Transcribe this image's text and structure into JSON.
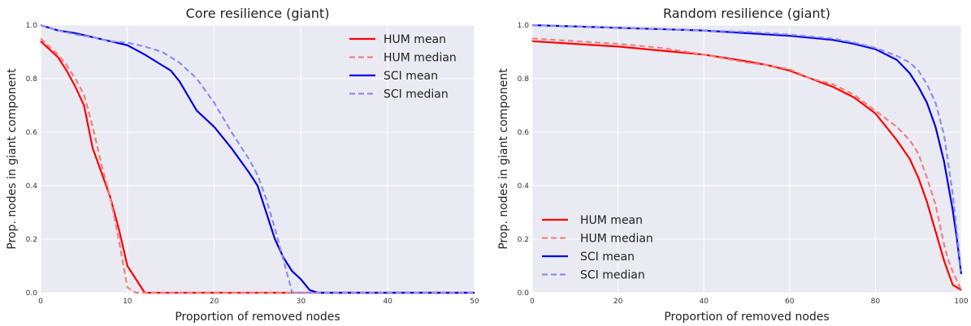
{
  "chart_data": [
    {
      "type": "line",
      "title": "Core resilience (giant)",
      "xlabel": "Proportion of removed nodes",
      "ylabel": "Prop. nodes in giant component",
      "xlim": [
        0,
        50
      ],
      "ylim": [
        0,
        1
      ],
      "xticks": [
        "0",
        "10",
        "20",
        "30",
        "40",
        "50"
      ],
      "yticks": [
        "0.0",
        "0.2",
        "0.4",
        "0.6",
        "0.8",
        "1.0"
      ],
      "grid": true,
      "legend_position": "top-right",
      "series": [
        {
          "name": "HUM mean",
          "color": "#ff0000",
          "style": "solid",
          "x": [
            0,
            1,
            2,
            3,
            4,
            5,
            6,
            7,
            8,
            9,
            10,
            11,
            12,
            13,
            15,
            20,
            30,
            50
          ],
          "y": [
            0.94,
            0.91,
            0.88,
            0.83,
            0.77,
            0.7,
            0.54,
            0.45,
            0.36,
            0.24,
            0.1,
            0.05,
            0.0,
            0.0,
            0.0,
            0.0,
            0.0,
            0.0
          ]
        },
        {
          "name": "HUM median",
          "color": "#f08080",
          "style": "dashed",
          "x": [
            0,
            1,
            2,
            3,
            4,
            5,
            6,
            7,
            8,
            9,
            10,
            11,
            12,
            20,
            30,
            50
          ],
          "y": [
            0.95,
            0.92,
            0.89,
            0.85,
            0.8,
            0.74,
            0.62,
            0.48,
            0.36,
            0.2,
            0.02,
            0.0,
            0.0,
            0.0,
            0.0,
            0.0
          ]
        },
        {
          "name": "SCI mean",
          "color": "#0000ee",
          "style": "solid",
          "x": [
            0,
            2,
            4,
            6,
            8,
            10,
            12,
            14,
            15,
            16,
            18,
            20,
            22,
            24,
            25,
            26,
            27,
            28,
            29,
            30,
            31,
            32,
            35,
            40,
            50
          ],
          "y": [
            1.0,
            0.98,
            0.97,
            0.955,
            0.94,
            0.925,
            0.89,
            0.85,
            0.83,
            0.79,
            0.68,
            0.62,
            0.54,
            0.45,
            0.4,
            0.3,
            0.2,
            0.13,
            0.08,
            0.05,
            0.01,
            0.0,
            0.0,
            0.0,
            0.0
          ]
        },
        {
          "name": "SCI median",
          "color": "#8c8cf2",
          "style": "dashed",
          "x": [
            0,
            2,
            4,
            6,
            8,
            10,
            12,
            14,
            15,
            16,
            18,
            20,
            22,
            24,
            25,
            26,
            27,
            28,
            29,
            30,
            40,
            50
          ],
          "y": [
            1.0,
            0.98,
            0.965,
            0.955,
            0.94,
            0.935,
            0.92,
            0.9,
            0.88,
            0.86,
            0.8,
            0.71,
            0.6,
            0.5,
            0.44,
            0.35,
            0.24,
            0.12,
            0.0,
            0.0,
            0.0,
            0.0
          ]
        }
      ]
    },
    {
      "type": "line",
      "title": "Random resilience (giant)",
      "xlabel": "Proportion of removed nodes",
      "ylabel": "Prop. nodes in giant component",
      "xlim": [
        0,
        100
      ],
      "ylim": [
        0,
        1
      ],
      "xticks": [
        "0",
        "20",
        "40",
        "60",
        "80",
        "100"
      ],
      "yticks": [
        "0.0",
        "0.2",
        "0.4",
        "0.6",
        "0.8",
        "1.0"
      ],
      "grid": true,
      "legend_position": "bottom-left",
      "series": [
        {
          "name": "HUM mean",
          "color": "#ff0000",
          "style": "solid",
          "x": [
            0,
            10,
            20,
            30,
            40,
            50,
            55,
            60,
            65,
            70,
            75,
            80,
            82,
            85,
            88,
            90,
            92,
            94,
            96,
            98,
            99,
            100
          ],
          "y": [
            0.94,
            0.93,
            0.92,
            0.905,
            0.89,
            0.865,
            0.85,
            0.83,
            0.8,
            0.77,
            0.73,
            0.67,
            0.63,
            0.57,
            0.5,
            0.43,
            0.34,
            0.23,
            0.12,
            0.03,
            0.02,
            0.01
          ]
        },
        {
          "name": "HUM median",
          "color": "#f08080",
          "style": "dashed",
          "x": [
            0,
            10,
            20,
            30,
            40,
            50,
            55,
            60,
            65,
            70,
            75,
            80,
            85,
            88,
            90,
            92,
            94,
            96,
            97,
            98,
            100
          ],
          "y": [
            0.95,
            0.94,
            0.93,
            0.915,
            0.89,
            0.86,
            0.85,
            0.835,
            0.8,
            0.78,
            0.74,
            0.68,
            0.62,
            0.57,
            0.52,
            0.43,
            0.33,
            0.18,
            0.12,
            0.08,
            0.01
          ]
        },
        {
          "name": "SCI mean",
          "color": "#0000ee",
          "style": "solid",
          "x": [
            0,
            10,
            20,
            30,
            40,
            50,
            60,
            70,
            75,
            80,
            85,
            88,
            90,
            92,
            94,
            96,
            98,
            99,
            100
          ],
          "y": [
            1.0,
            0.995,
            0.99,
            0.985,
            0.98,
            0.97,
            0.96,
            0.945,
            0.93,
            0.91,
            0.87,
            0.82,
            0.77,
            0.71,
            0.62,
            0.49,
            0.31,
            0.2,
            0.07
          ]
        },
        {
          "name": "SCI median",
          "color": "#8c8cf2",
          "style": "dashed",
          "x": [
            0,
            10,
            20,
            30,
            40,
            50,
            60,
            70,
            75,
            80,
            85,
            88,
            90,
            92,
            94,
            96,
            98,
            100
          ],
          "y": [
            1.0,
            0.995,
            0.99,
            0.985,
            0.98,
            0.975,
            0.965,
            0.95,
            0.935,
            0.915,
            0.885,
            0.86,
            0.83,
            0.78,
            0.71,
            0.59,
            0.37,
            0.08
          ]
        }
      ]
    }
  ]
}
